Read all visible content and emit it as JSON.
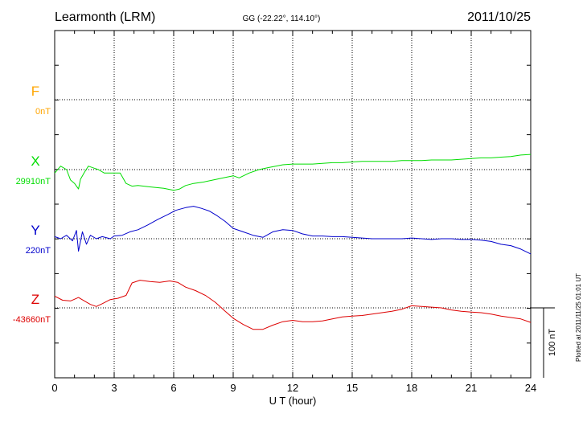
{
  "header": {
    "station": "Learmonth (LRM)",
    "coords": "GG (-22.22°, 114.10°)",
    "date": "2011/10/25"
  },
  "side_note": "Plotted at 2011/11/25 01:01  UT",
  "chart_data": {
    "type": "line",
    "xlabel": "U T (hour)",
    "xlim": [
      0,
      24
    ],
    "xticks": [
      "0",
      "3",
      "6",
      "9",
      "12",
      "15",
      "18",
      "21",
      "24"
    ],
    "scale_bar": {
      "label": "100 nT",
      "value_nT": 100
    },
    "series": [
      {
        "name": "F",
        "baseline_label": "0nT",
        "color": "#ffa500",
        "points": []
      },
      {
        "name": "X",
        "baseline_label": "29910nT",
        "color": "#00dd00",
        "points": [
          [
            0.0,
            -5
          ],
          [
            0.3,
            5
          ],
          [
            0.6,
            0
          ],
          [
            0.8,
            -15
          ],
          [
            1.0,
            -20
          ],
          [
            1.2,
            -28
          ],
          [
            1.3,
            -14
          ],
          [
            1.5,
            -4
          ],
          [
            1.7,
            5
          ],
          [
            2.0,
            2
          ],
          [
            2.2,
            0
          ],
          [
            2.5,
            -5
          ],
          [
            3.0,
            -5
          ],
          [
            3.3,
            -5
          ],
          [
            3.6,
            -20
          ],
          [
            3.9,
            -24
          ],
          [
            4.2,
            -23
          ],
          [
            4.8,
            -25
          ],
          [
            5.5,
            -27
          ],
          [
            6.0,
            -30
          ],
          [
            6.3,
            -28
          ],
          [
            6.6,
            -23
          ],
          [
            7.0,
            -20
          ],
          [
            7.5,
            -18
          ],
          [
            8.0,
            -15
          ],
          [
            8.5,
            -12
          ],
          [
            9.0,
            -9
          ],
          [
            9.3,
            -12
          ],
          [
            9.8,
            -5
          ],
          [
            10.3,
            0
          ],
          [
            10.8,
            3
          ],
          [
            11.5,
            7
          ],
          [
            12.0,
            8
          ],
          [
            12.5,
            8
          ],
          [
            13.0,
            8
          ],
          [
            13.5,
            9
          ],
          [
            14.0,
            10
          ],
          [
            14.5,
            10
          ],
          [
            15.0,
            11
          ],
          [
            15.5,
            12
          ],
          [
            16.0,
            12
          ],
          [
            16.5,
            12
          ],
          [
            17.0,
            12
          ],
          [
            17.5,
            13
          ],
          [
            18.0,
            13
          ],
          [
            18.5,
            13
          ],
          [
            19.0,
            14
          ],
          [
            19.5,
            14
          ],
          [
            20.0,
            14
          ],
          [
            20.5,
            15
          ],
          [
            21.0,
            16
          ],
          [
            21.5,
            17
          ],
          [
            22.0,
            17
          ],
          [
            22.5,
            18
          ],
          [
            23.0,
            19
          ],
          [
            23.5,
            21
          ],
          [
            24.0,
            22
          ]
        ]
      },
      {
        "name": "Y",
        "baseline_label": "220nT",
        "color": "#0000cc",
        "points": [
          [
            0.0,
            3
          ],
          [
            0.3,
            0
          ],
          [
            0.6,
            5
          ],
          [
            0.9,
            -3
          ],
          [
            1.1,
            12
          ],
          [
            1.2,
            -18
          ],
          [
            1.4,
            10
          ],
          [
            1.6,
            -8
          ],
          [
            1.8,
            5
          ],
          [
            2.1,
            0
          ],
          [
            2.4,
            3
          ],
          [
            2.8,
            0
          ],
          [
            3.0,
            4
          ],
          [
            3.4,
            5
          ],
          [
            3.8,
            10
          ],
          [
            4.2,
            13
          ],
          [
            4.7,
            20
          ],
          [
            5.2,
            28
          ],
          [
            5.7,
            35
          ],
          [
            6.1,
            41
          ],
          [
            6.6,
            45
          ],
          [
            7.0,
            47
          ],
          [
            7.4,
            44
          ],
          [
            7.8,
            40
          ],
          [
            8.2,
            33
          ],
          [
            8.6,
            25
          ],
          [
            9.0,
            15
          ],
          [
            9.5,
            10
          ],
          [
            10.0,
            5
          ],
          [
            10.5,
            2
          ],
          [
            11.0,
            10
          ],
          [
            11.5,
            13
          ],
          [
            12.0,
            12
          ],
          [
            12.5,
            7
          ],
          [
            13.0,
            4
          ],
          [
            13.5,
            4
          ],
          [
            14.0,
            3
          ],
          [
            14.5,
            3
          ],
          [
            15.0,
            2
          ],
          [
            15.5,
            1
          ],
          [
            16.0,
            0
          ],
          [
            16.5,
            0
          ],
          [
            17.0,
            0
          ],
          [
            17.5,
            0
          ],
          [
            18.0,
            1
          ],
          [
            18.5,
            0
          ],
          [
            19.0,
            -1
          ],
          [
            19.5,
            0
          ],
          [
            20.0,
            0
          ],
          [
            20.5,
            -1
          ],
          [
            21.0,
            -1
          ],
          [
            21.5,
            -2
          ],
          [
            22.0,
            -4
          ],
          [
            22.5,
            -8
          ],
          [
            23.0,
            -10
          ],
          [
            23.5,
            -15
          ],
          [
            24.0,
            -22
          ]
        ]
      },
      {
        "name": "Z",
        "baseline_label": "-43660nT",
        "color": "#dd0000",
        "points": [
          [
            0.0,
            17
          ],
          [
            0.4,
            11
          ],
          [
            0.8,
            10
          ],
          [
            1.2,
            15
          ],
          [
            1.5,
            10
          ],
          [
            1.8,
            5
          ],
          [
            2.1,
            2
          ],
          [
            2.4,
            6
          ],
          [
            2.8,
            12
          ],
          [
            3.2,
            14
          ],
          [
            3.6,
            18
          ],
          [
            3.9,
            36
          ],
          [
            4.3,
            40
          ],
          [
            4.8,
            38
          ],
          [
            5.3,
            37
          ],
          [
            5.8,
            39
          ],
          [
            6.2,
            37
          ],
          [
            6.6,
            30
          ],
          [
            7.1,
            25
          ],
          [
            7.6,
            18
          ],
          [
            8.1,
            8
          ],
          [
            8.6,
            -5
          ],
          [
            9.0,
            -15
          ],
          [
            9.5,
            -24
          ],
          [
            10.0,
            -31
          ],
          [
            10.5,
            -31
          ],
          [
            11.0,
            -25
          ],
          [
            11.5,
            -20
          ],
          [
            12.0,
            -18
          ],
          [
            12.5,
            -20
          ],
          [
            13.0,
            -20
          ],
          [
            13.5,
            -19
          ],
          [
            14.0,
            -16
          ],
          [
            14.5,
            -13
          ],
          [
            15.0,
            -12
          ],
          [
            15.5,
            -11
          ],
          [
            16.0,
            -9
          ],
          [
            16.5,
            -7
          ],
          [
            17.0,
            -5
          ],
          [
            17.5,
            -2
          ],
          [
            18.0,
            3
          ],
          [
            18.5,
            2
          ],
          [
            19.0,
            1
          ],
          [
            19.5,
            0
          ],
          [
            20.0,
            -3
          ],
          [
            20.5,
            -5
          ],
          [
            21.0,
            -6
          ],
          [
            21.5,
            -7
          ],
          [
            22.0,
            -9
          ],
          [
            22.5,
            -12
          ],
          [
            23.0,
            -14
          ],
          [
            23.5,
            -16
          ],
          [
            24.0,
            -21
          ]
        ]
      }
    ]
  }
}
